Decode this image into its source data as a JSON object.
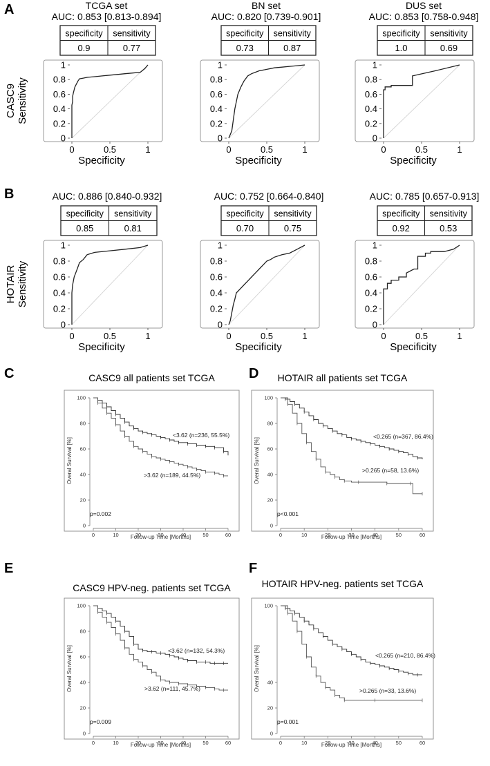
{
  "panel_labels": [
    "A",
    "B",
    "C",
    "D",
    "E",
    "F"
  ],
  "chart_data": [
    {
      "type": "line",
      "panel": "A",
      "title": "TCGA set",
      "auc": "AUC: 0.853 [0.813-0.894]",
      "table": {
        "headers": [
          "specificity",
          "sensitivity"
        ],
        "values": [
          "0.9",
          "0.77"
        ]
      },
      "ylabel": "Sensitivity",
      "xlabel": "Specificity",
      "row_label": "CASC9",
      "xticks": [
        "0",
        "0.5",
        "1"
      ],
      "yticks": [
        "0",
        "0.2",
        "0.4",
        "0.6",
        "0.8",
        "1"
      ],
      "xlim": [
        0,
        1
      ],
      "ylim": [
        0,
        1
      ],
      "x": [
        0,
        0,
        0.01,
        0.01,
        0.02,
        0.03,
        0.04,
        0.06,
        0.08,
        0.1,
        0.15,
        0.2,
        0.3,
        0.4,
        0.5,
        0.6,
        0.7,
        0.8,
        0.9,
        0.96,
        1
      ],
      "y": [
        0,
        0.45,
        0.5,
        0.57,
        0.62,
        0.66,
        0.7,
        0.74,
        0.78,
        0.81,
        0.82,
        0.83,
        0.84,
        0.85,
        0.86,
        0.87,
        0.88,
        0.89,
        0.9,
        0.95,
        1
      ]
    },
    {
      "type": "line",
      "panel": "A",
      "title": "BN set",
      "auc": "AUC: 0.820 [0.739-0.901]",
      "table": {
        "headers": [
          "specificity",
          "sensitivity"
        ],
        "values": [
          "0.73",
          "0.87"
        ]
      },
      "ylabel": "",
      "xlabel": "Specificity",
      "row_label": "",
      "xticks": [
        "0",
        "0.5",
        "1"
      ],
      "yticks": [
        "0",
        "0.2",
        "0.4",
        "0.6",
        "0.8",
        "1"
      ],
      "xlim": [
        0,
        1
      ],
      "ylim": [
        0,
        1
      ],
      "x": [
        0,
        0.02,
        0.04,
        0.06,
        0.08,
        0.1,
        0.12,
        0.14,
        0.16,
        0.2,
        0.25,
        0.3,
        0.35,
        0.4,
        0.5,
        0.6,
        0.7,
        0.8,
        0.9,
        1
      ],
      "y": [
        0,
        0.05,
        0.1,
        0.25,
        0.4,
        0.5,
        0.6,
        0.65,
        0.7,
        0.78,
        0.85,
        0.88,
        0.9,
        0.92,
        0.94,
        0.96,
        0.97,
        0.98,
        0.99,
        1
      ]
    },
    {
      "type": "line",
      "panel": "A",
      "title": "DUS set",
      "auc": "AUC: 0.853 [0.758-0.948]",
      "table": {
        "headers": [
          "specificity",
          "sensitivity"
        ],
        "values": [
          "1.0",
          "0.69"
        ]
      },
      "ylabel": "",
      "xlabel": "Specificity",
      "row_label": "",
      "xticks": [
        "0",
        "0.5",
        "1"
      ],
      "yticks": [
        "0",
        "0.2",
        "0.4",
        "0.6",
        "0.8",
        "1"
      ],
      "xlim": [
        0,
        1
      ],
      "ylim": [
        0,
        1
      ],
      "x": [
        0,
        0,
        0.02,
        0.02,
        0.1,
        0.1,
        0.38,
        0.38,
        0.68,
        1
      ],
      "y": [
        0,
        0.66,
        0.66,
        0.7,
        0.7,
        0.72,
        0.72,
        0.85,
        0.92,
        1
      ]
    },
    {
      "type": "line",
      "panel": "B",
      "title": "",
      "auc": "AUC: 0.886 [0.840-0.932]",
      "table": {
        "headers": [
          "specificity",
          "sensitivity"
        ],
        "values": [
          "0.85",
          "0.81"
        ]
      },
      "ylabel": "Sensitivity",
      "xlabel": "Specificity",
      "row_label": "HOTAIR",
      "xticks": [
        "0",
        "0.5",
        "1"
      ],
      "yticks": [
        "0",
        "0.2",
        "0.4",
        "0.6",
        "0.8",
        "1"
      ],
      "xlim": [
        0,
        1
      ],
      "ylim": [
        0,
        1
      ],
      "x": [
        0,
        0,
        0.01,
        0.02,
        0.03,
        0.05,
        0.07,
        0.1,
        0.15,
        0.2,
        0.3,
        0.5,
        0.7,
        0.9,
        1
      ],
      "y": [
        0,
        0.4,
        0.5,
        0.55,
        0.6,
        0.65,
        0.7,
        0.78,
        0.82,
        0.88,
        0.91,
        0.93,
        0.95,
        0.97,
        1
      ]
    },
    {
      "type": "line",
      "panel": "B",
      "title": "",
      "auc": "AUC: 0.752 [0.664-0.840]",
      "table": {
        "headers": [
          "specificity",
          "sensitivity"
        ],
        "values": [
          "0.70",
          "0.75"
        ]
      },
      "ylabel": "",
      "xlabel": "Specificity",
      "row_label": "",
      "xticks": [
        "0",
        "0.5",
        "1"
      ],
      "yticks": [
        "0",
        "0.2",
        "0.4",
        "0.6",
        "0.8",
        "1"
      ],
      "xlim": [
        0,
        1
      ],
      "ylim": [
        0,
        1
      ],
      "x": [
        0,
        0.02,
        0.04,
        0.06,
        0.08,
        0.1,
        0.15,
        0.2,
        0.25,
        0.3,
        0.35,
        0.4,
        0.45,
        0.5,
        0.55,
        0.6,
        0.7,
        0.8,
        0.9,
        1
      ],
      "y": [
        0,
        0.05,
        0.15,
        0.25,
        0.32,
        0.4,
        0.45,
        0.5,
        0.55,
        0.6,
        0.65,
        0.7,
        0.75,
        0.8,
        0.82,
        0.85,
        0.88,
        0.9,
        0.95,
        1
      ]
    },
    {
      "type": "line",
      "panel": "B",
      "title": "",
      "auc": "AUC: 0.785 [0.657-0.913]",
      "table": {
        "headers": [
          "specificity",
          "sensitivity"
        ],
        "values": [
          "0.92",
          "0.53"
        ]
      },
      "ylabel": "",
      "xlabel": "Specificity",
      "row_label": "",
      "xticks": [
        "0",
        "0.5",
        "1"
      ],
      "yticks": [
        "0",
        "0.2",
        "0.4",
        "0.6",
        "0.8",
        "1"
      ],
      "xlim": [
        0,
        1
      ],
      "ylim": [
        0,
        1
      ],
      "x": [
        0,
        0,
        0.05,
        0.05,
        0.1,
        0.1,
        0.2,
        0.2,
        0.3,
        0.3,
        0.4,
        0.45,
        0.45,
        0.55,
        0.55,
        0.62,
        0.62,
        0.8,
        0.92,
        1
      ],
      "y": [
        0,
        0.45,
        0.45,
        0.52,
        0.52,
        0.56,
        0.56,
        0.6,
        0.6,
        0.65,
        0.7,
        0.7,
        0.86,
        0.86,
        0.9,
        0.9,
        0.92,
        0.92,
        0.95,
        1
      ]
    },
    {
      "type": "line",
      "panel": "C",
      "title": "CASC9 all patients set TCGA",
      "ylabel": "Overal Survival [%]",
      "xlabel": "Follow-up Time [Months]",
      "xticks": [
        0,
        10,
        20,
        30,
        40,
        50,
        60
      ],
      "yticks": [
        0,
        20,
        40,
        60,
        80,
        100
      ],
      "xlim": [
        0,
        60
      ],
      "ylim": [
        0,
        100
      ],
      "pvalue": "p=0.002",
      "series": [
        {
          "label": "<3.62 (n=236, 55.5%)",
          "x": [
            0,
            2,
            4,
            6,
            8,
            10,
            12,
            14,
            16,
            18,
            20,
            22,
            24,
            26,
            28,
            30,
            32,
            34,
            36,
            38,
            40,
            42,
            44,
            46,
            48,
            50,
            52,
            54,
            56,
            58,
            60
          ],
          "y": [
            100,
            98,
            96,
            93,
            90,
            87,
            84,
            81,
            78,
            76,
            74,
            73,
            72,
            71,
            70,
            69,
            68,
            67,
            66,
            65,
            65,
            64,
            64,
            63,
            63,
            62,
            62,
            61,
            61,
            58,
            55
          ]
        },
        {
          "label": ">3.62 (n=189, 44.5%)",
          "x": [
            0,
            2,
            4,
            6,
            8,
            10,
            12,
            14,
            16,
            18,
            20,
            22,
            24,
            26,
            28,
            30,
            32,
            34,
            36,
            38,
            40,
            42,
            44,
            46,
            48,
            50,
            52,
            54,
            56,
            58,
            60
          ],
          "y": [
            100,
            96,
            92,
            88,
            84,
            79,
            74,
            70,
            66,
            62,
            60,
            58,
            56,
            54,
            53,
            52,
            51,
            50,
            49,
            48,
            47,
            46,
            45,
            44,
            43,
            42,
            42,
            41,
            40,
            39,
            39
          ]
        }
      ]
    },
    {
      "type": "line",
      "panel": "D",
      "title": "HOTAIR all patients set TCGA",
      "ylabel": "Overal Survival [%]",
      "xlabel": "Follow-up Time [Months]",
      "xticks": [
        0,
        10,
        20,
        30,
        40,
        50,
        60
      ],
      "yticks": [
        0,
        20,
        40,
        60,
        80,
        100
      ],
      "xlim": [
        0,
        60
      ],
      "ylim": [
        0,
        100
      ],
      "pvalue": "p<0.001",
      "series": [
        {
          "label": "<0.265 (n=367, 86.4%)",
          "x": [
            0,
            2,
            4,
            6,
            8,
            10,
            12,
            14,
            16,
            18,
            20,
            22,
            24,
            26,
            28,
            30,
            32,
            34,
            36,
            38,
            40,
            42,
            44,
            46,
            48,
            50,
            52,
            54,
            56,
            58,
            60
          ],
          "y": [
            100,
            99,
            97,
            95,
            92,
            89,
            86,
            83,
            80,
            78,
            76,
            74,
            72,
            71,
            69,
            68,
            67,
            66,
            65,
            64,
            63,
            62,
            61,
            60,
            59,
            58,
            57,
            56,
            54,
            53,
            52
          ]
        },
        {
          "label": ">0.265 (n=58, 13.6%)",
          "x": [
            0,
            3,
            5,
            7,
            9,
            11,
            13,
            15,
            17,
            19,
            21,
            23,
            25,
            27,
            30,
            33,
            40,
            45,
            50,
            55,
            56,
            60
          ],
          "y": [
            100,
            95,
            88,
            80,
            72,
            65,
            58,
            52,
            46,
            42,
            40,
            38,
            36,
            35,
            34,
            34,
            34,
            33,
            33,
            33,
            25,
            25
          ]
        }
      ]
    },
    {
      "type": "line",
      "panel": "E",
      "title": "CASC9 HPV-neg. patients set TCGA",
      "ylabel": "Overal Survival [%]",
      "xlabel": "Follow-up Time [Months]",
      "xticks": [
        0,
        10,
        20,
        30,
        40,
        50,
        60
      ],
      "yticks": [
        0,
        20,
        40,
        60,
        80,
        100
      ],
      "xlim": [
        0,
        60
      ],
      "ylim": [
        0,
        100
      ],
      "pvalue": "p=0.009",
      "series": [
        {
          "label": "<3.62 (n=132, 54.3%)",
          "x": [
            0,
            2,
            4,
            6,
            8,
            10,
            12,
            14,
            16,
            18,
            20,
            22,
            24,
            26,
            28,
            30,
            32,
            34,
            36,
            38,
            40,
            42,
            44,
            46,
            48,
            50,
            52,
            54,
            56,
            58,
            60
          ],
          "y": [
            100,
            98,
            96,
            94,
            91,
            88,
            84,
            80,
            76,
            70,
            66,
            65,
            64,
            64,
            63,
            63,
            62,
            61,
            60,
            59,
            58,
            57,
            57,
            56,
            56,
            56,
            55,
            55,
            55,
            55,
            55
          ]
        },
        {
          "label": ">3.62 (n=111, 45.7%)",
          "x": [
            0,
            2,
            4,
            6,
            8,
            10,
            12,
            14,
            16,
            18,
            20,
            22,
            24,
            26,
            28,
            30,
            32,
            34,
            36,
            38,
            40,
            42,
            44,
            46,
            48,
            50,
            52,
            54,
            56,
            58,
            60
          ],
          "y": [
            100,
            95,
            91,
            87,
            83,
            78,
            73,
            67,
            62,
            58,
            56,
            53,
            50,
            48,
            45,
            42,
            41,
            40,
            40,
            39,
            39,
            38,
            38,
            37,
            37,
            36,
            36,
            35,
            34,
            34,
            34
          ]
        }
      ]
    },
    {
      "type": "line",
      "panel": "F",
      "title": "HOTAIR HPV-neg. patients set TCGA",
      "ylabel": "Overal Survival [%]",
      "xlabel": "Follow-up Time [Months]",
      "xticks": [
        0,
        10,
        20,
        30,
        40,
        50,
        60
      ],
      "yticks": [
        0,
        20,
        40,
        100
      ],
      "xlim": [
        0,
        60
      ],
      "ylim": [
        0,
        100
      ],
      "pvalue": "p=0.001",
      "series": [
        {
          "label": "<0.265 (n=210, 86.4%)",
          "x": [
            0,
            2,
            4,
            6,
            8,
            10,
            12,
            14,
            16,
            18,
            20,
            22,
            24,
            26,
            28,
            30,
            32,
            34,
            36,
            38,
            40,
            42,
            44,
            46,
            48,
            50,
            52,
            54,
            56,
            58,
            60
          ],
          "y": [
            100,
            98,
            96,
            94,
            91,
            88,
            85,
            82,
            79,
            76,
            73,
            70,
            68,
            66,
            64,
            62,
            60,
            58,
            56,
            55,
            54,
            53,
            52,
            51,
            50,
            49,
            48,
            47,
            46,
            46,
            46
          ]
        },
        {
          "label": ">0.265 (n=33, 13.6%)",
          "x": [
            0,
            3,
            5,
            7,
            9,
            11,
            13,
            15,
            17,
            19,
            21,
            23,
            25,
            27,
            30,
            40,
            50,
            60
          ],
          "y": [
            100,
            94,
            88,
            80,
            70,
            60,
            52,
            45,
            40,
            36,
            34,
            30,
            28,
            26,
            26,
            26,
            26,
            26
          ]
        }
      ]
    }
  ]
}
